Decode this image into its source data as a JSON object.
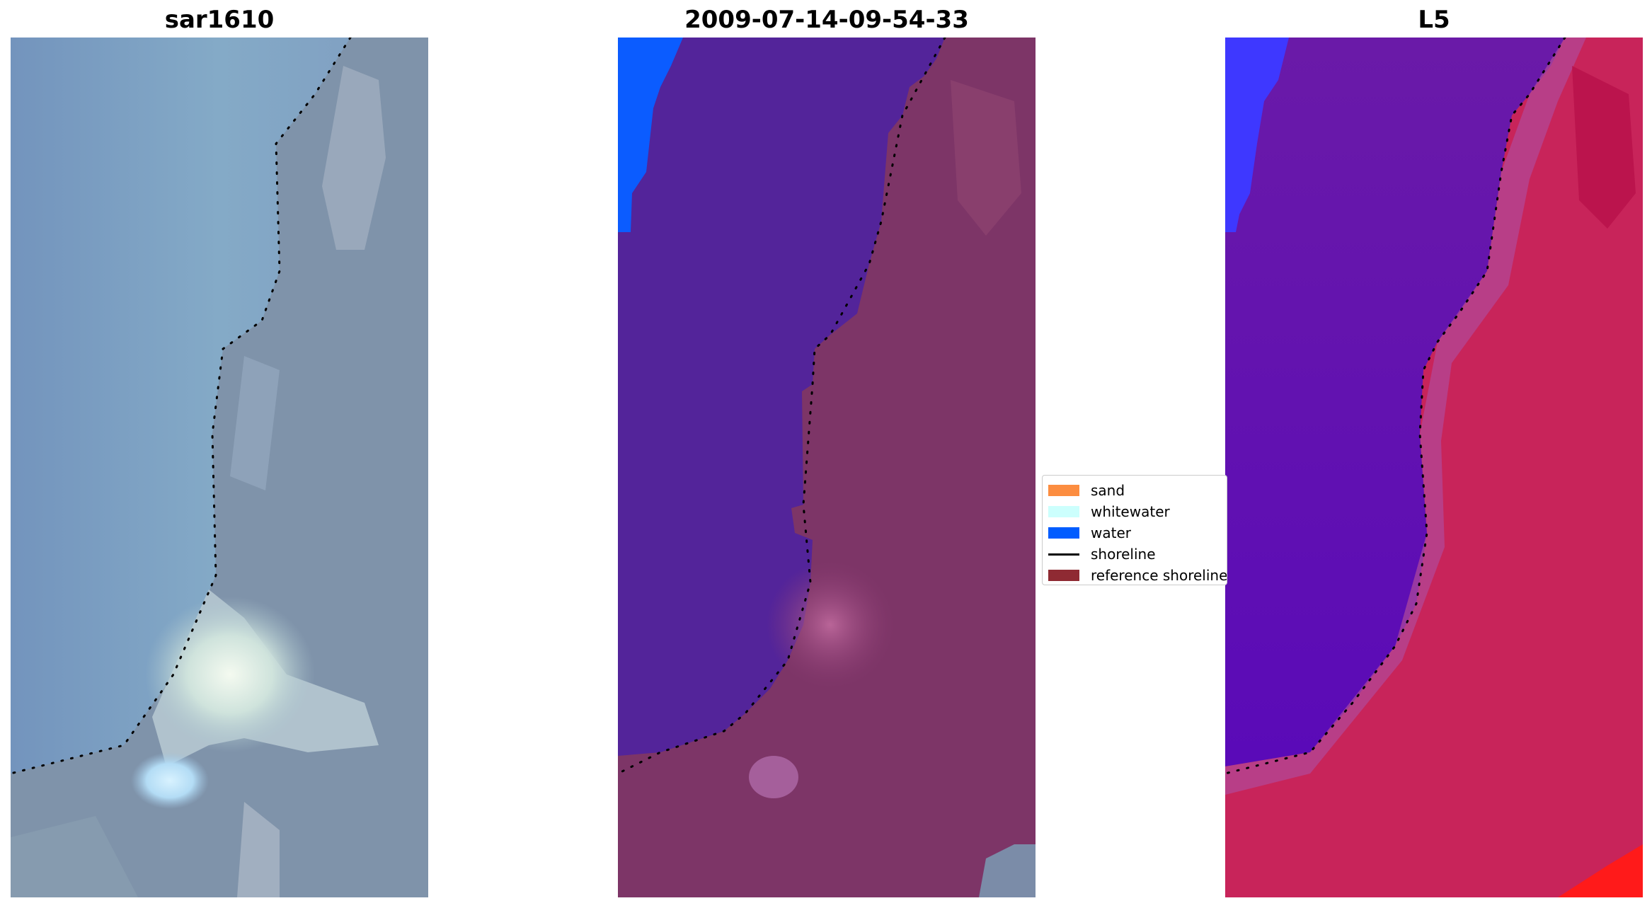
{
  "panels": [
    {
      "title": "sar1610"
    },
    {
      "title": "2009-07-14-09-54-33"
    },
    {
      "title": "L5"
    }
  ],
  "legend": {
    "items": [
      {
        "label": "sand",
        "color": "#fc8d40",
        "kind": "patch"
      },
      {
        "label": "whitewater",
        "color": "#ccfffd",
        "kind": "patch"
      },
      {
        "label": "water",
        "color": "#005cff",
        "kind": "patch"
      },
      {
        "label": "shoreline",
        "color": "#000000",
        "kind": "line"
      },
      {
        "label": "reference shoreline",
        "color": "#8f2a33",
        "kind": "patch"
      }
    ]
  },
  "colors": {
    "rgb_water": "#7d9dbd",
    "rgb_land": "#7f91a8",
    "class_water": "#53249a",
    "class_land": "#7d3567",
    "index_water": "#6a12b0",
    "index_land": "#c8245a",
    "water_class_blue": "#0b5cff"
  }
}
